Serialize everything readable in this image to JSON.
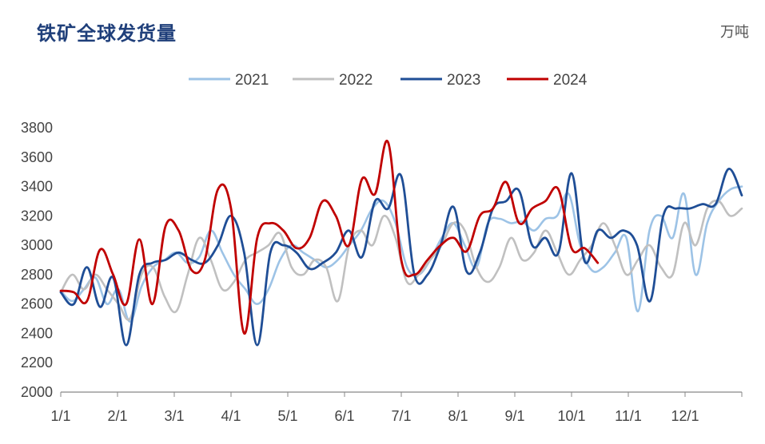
{
  "title": "铁矿全球发货量",
  "unit": "万吨",
  "chart_data": {
    "type": "line",
    "title": "铁矿全球发货量",
    "ylabel": "万吨",
    "xlabel": "",
    "ylim": [
      2000,
      3800
    ],
    "yticks": [
      2000,
      2200,
      2400,
      2600,
      2800,
      3000,
      3200,
      3400,
      3600,
      3800
    ],
    "xticks": [
      "1/1",
      "2/1",
      "3/1",
      "4/1",
      "5/1",
      "6/1",
      "7/1",
      "8/1",
      "9/1",
      "10/1",
      "11/1",
      "12/1"
    ],
    "legend_position": "top-center",
    "x_unit": "week",
    "series": [
      {
        "name": "2021",
        "color": "#9dc3e6",
        "values": [
          2690,
          2620,
          2700,
          2780,
          2600,
          2700,
          2480,
          2720,
          2850,
          2900,
          2950,
          2880,
          2920,
          3100,
          2950,
          2800,
          2700,
          2600,
          2700,
          2900,
          3000,
          2950,
          2900,
          2850,
          2900,
          3000,
          3100,
          3250,
          3300,
          3150,
          2850,
          2800,
          2900,
          3050,
          3150,
          3000,
          2850,
          3150,
          3180,
          3150,
          3160,
          3100,
          3180,
          3200,
          3350,
          3000,
          2830,
          2850,
          2950,
          3050,
          2550,
          3100,
          3200,
          3050,
          3350,
          2800,
          3150,
          3300,
          3380,
          3400
        ]
      },
      {
        "name": "2022",
        "color": "#c0c0c0",
        "values": [
          2680,
          2800,
          2700,
          2800,
          2700,
          2600,
          2500,
          2800,
          2850,
          2650,
          2550,
          2800,
          3050,
          2900,
          2700,
          2750,
          2900,
          2950,
          3000,
          3080,
          2850,
          2800,
          2900,
          2850,
          2620,
          3000,
          3100,
          3000,
          3200,
          3050,
          2750,
          2800,
          2900,
          3000,
          3150,
          3100,
          2850,
          2750,
          2850,
          3050,
          2900,
          2950,
          3100,
          2950,
          2800,
          2900,
          3000,
          3150,
          3000,
          2800,
          2900,
          3000,
          2850,
          2800,
          3150,
          3000,
          3250,
          3300,
          3200,
          3250
        ]
      },
      {
        "name": "2023",
        "color": "#1f4e96",
        "values": [
          2680,
          2600,
          2850,
          2580,
          2780,
          2320,
          2800,
          2880,
          2900,
          2950,
          2900,
          2880,
          3000,
          3200,
          2950,
          2320,
          2950,
          3000,
          2950,
          2840,
          2880,
          2950,
          3100,
          2920,
          3300,
          3250,
          3470,
          2800,
          2800,
          3000,
          3260,
          2820,
          2950,
          3250,
          3300,
          3370,
          3000,
          3050,
          2950,
          3490,
          2890,
          3100,
          3050,
          3100,
          3000,
          2620,
          3200,
          3250,
          3250,
          3280,
          3280,
          3520,
          3340
        ]
      },
      {
        "name": "2024",
        "color": "#c00000",
        "values": [
          2690,
          2680,
          2620,
          2970,
          2800,
          2600,
          3040,
          2600,
          3130,
          3100,
          2830,
          2900,
          3380,
          3250,
          2400,
          3050,
          3150,
          3100,
          2980,
          3050,
          3300,
          3200,
          3000,
          3450,
          3350,
          3700,
          2900,
          2800,
          2900,
          3000,
          3050,
          2960,
          3200,
          3250,
          3430,
          3150,
          3250,
          3300,
          3380,
          2980,
          2980,
          2880
        ]
      }
    ]
  }
}
